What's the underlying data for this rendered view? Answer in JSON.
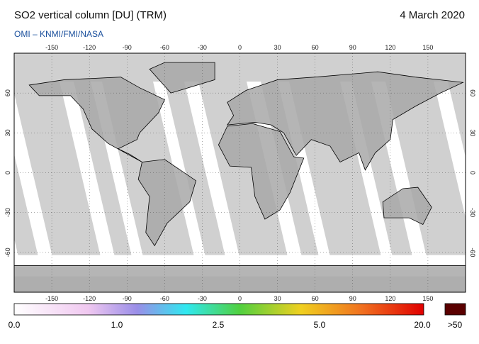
{
  "header": {
    "title": "SO2 vertical column [DU] (TRM)",
    "date": "4 March 2020",
    "source": "OMI  –  KNMI/FMI/NASA"
  },
  "map": {
    "lon_ticks": [
      -150,
      -120,
      -90,
      -60,
      -30,
      0,
      30,
      60,
      90,
      120,
      150
    ],
    "lat_ticks": [
      60,
      30,
      0,
      -30,
      -60
    ]
  },
  "colorbar": {
    "labels": [
      "0.0",
      "1.0",
      "2.5",
      "5.0",
      "20.0"
    ],
    "overflow": ">50"
  }
}
